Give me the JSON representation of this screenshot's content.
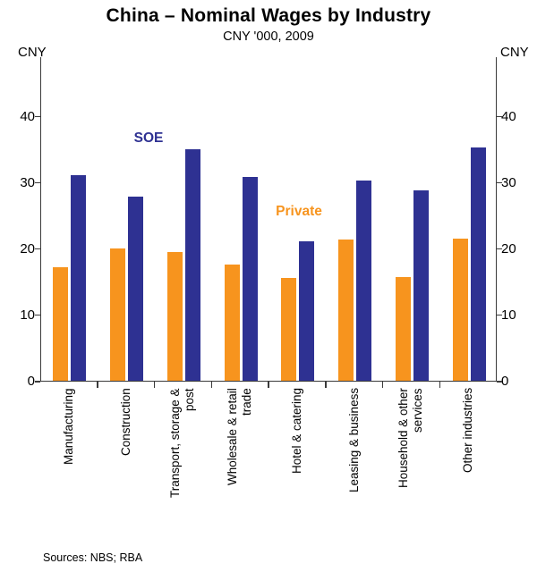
{
  "header": {
    "title": "China – Nominal Wages by Industry",
    "subtitle": "CNY '000, 2009"
  },
  "axes": {
    "left_unit": "CNY",
    "right_unit": "CNY",
    "yticks": [
      0,
      10,
      20,
      30,
      40
    ]
  },
  "chart_data": {
    "type": "bar",
    "title": "China – Nominal Wages by Industry",
    "subtitle": "CNY '000, 2009",
    "xlabel": "",
    "ylabel": "CNY '000",
    "ylim": [
      0,
      40
    ],
    "grid": false,
    "legend_position": "inline annotations (SOE above Construction bars, Private above Hotel & catering bars)",
    "categories": [
      "Manufacturing",
      "Construction",
      "Transport, storage & post",
      "Wholesale & retail trade",
      "Hotel & catering",
      "Leasing & business",
      "Household & other services",
      "Other industries"
    ],
    "category_labels": [
      "Manufacturing",
      "Construction",
      "Transport, storage &\npost",
      "Wholesale & retail\ntrade",
      "Hotel & catering",
      "Leasing & business",
      "Household & other\nservices",
      "Other industries"
    ],
    "series": [
      {
        "name": "Private",
        "color": "#F7941E",
        "values": [
          17.2,
          20.0,
          19.5,
          17.6,
          15.5,
          21.3,
          15.6,
          21.5
        ]
      },
      {
        "name": "SOE",
        "color": "#2E3192",
        "values": [
          31.0,
          27.8,
          35.0,
          30.8,
          21.0,
          30.3,
          28.8,
          35.2
        ]
      }
    ]
  },
  "footer": {
    "sources": "Sources: NBS; RBA"
  }
}
